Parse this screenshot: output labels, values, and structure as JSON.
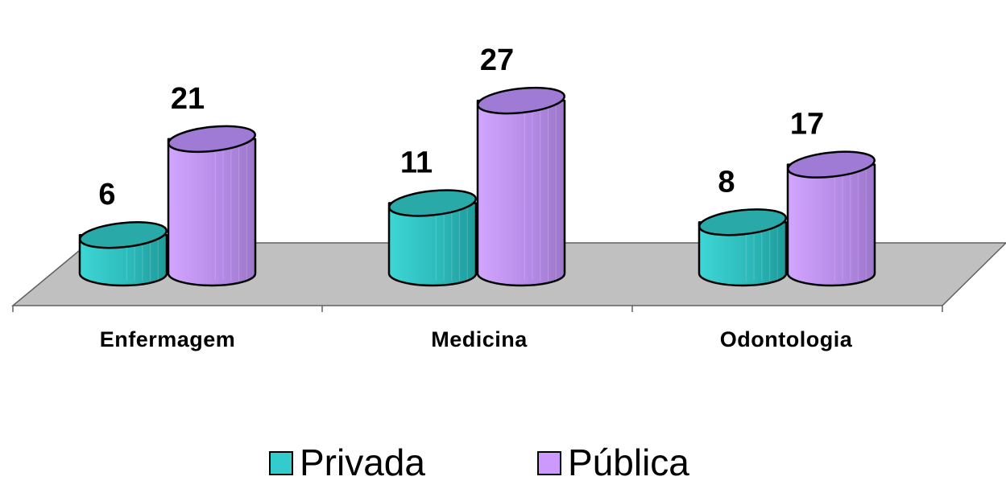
{
  "chart_data": {
    "type": "bar",
    "categories": [
      "Enfermagem",
      "Medicina",
      "Odontologia"
    ],
    "series": [
      {
        "name": "Privada",
        "values": [
          6,
          11,
          8
        ],
        "color": "#33CCCC"
      },
      {
        "name": "Pública",
        "values": [
          21,
          27,
          17
        ],
        "color": "#CC99FF"
      }
    ],
    "ylim": [
      0,
      27
    ],
    "grid": false,
    "legend": "bottom"
  },
  "legend": {
    "items": [
      {
        "label": "Privada",
        "color": "#33CCCC"
      },
      {
        "label": "Pública",
        "color": "#CC99FF"
      }
    ]
  }
}
